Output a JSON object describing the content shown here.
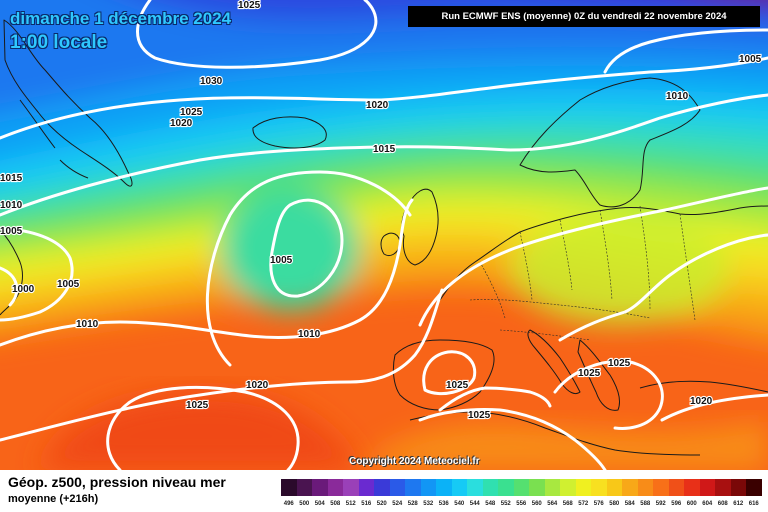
{
  "header": {
    "date": "dimanche 1 décembre 2024",
    "time": "1:00 locale",
    "run_info": "Run ECMWF ENS (moyenne) 0Z du vendredi 22 novembre 2024"
  },
  "copyright": "Copyright 2024 Meteociel.fr",
  "footer": {
    "variable_title": "Géop. z500, pression niveau mer",
    "variable_subtitle": "moyenne   (+216h)"
  },
  "pressure_labels": [
    "1025",
    "1030",
    "1020",
    "1025",
    "1020",
    "1015",
    "1010",
    "1005",
    "1015",
    "1010",
    "1005",
    "1000",
    "1005",
    "1010",
    "1010",
    "1005",
    "1020",
    "1025",
    "1025",
    "1025",
    "1025",
    "1025",
    "1020"
  ],
  "legend": {
    "labels": [
      "496",
      "500",
      "504",
      "508",
      "512",
      "516",
      "520",
      "524",
      "528",
      "532",
      "536",
      "540",
      "544",
      "548",
      "552",
      "556",
      "560",
      "564",
      "568",
      "572",
      "576",
      "580",
      "584",
      "588",
      "592",
      "596",
      "600",
      "604",
      "608",
      "612",
      "616"
    ],
    "colors": [
      "#2b0a2b",
      "#4a1450",
      "#6a1a7a",
      "#8a2a9a",
      "#9a40b8",
      "#6a2ad0",
      "#3a3ad8",
      "#2a5ae8",
      "#1e78f0",
      "#1296f5",
      "#0bb2f7",
      "#16caf5",
      "#2adede",
      "#30e0b0",
      "#3ae090",
      "#55e070",
      "#7ae050",
      "#a8e840",
      "#d0f030",
      "#f0f020",
      "#f8e020",
      "#f8c818",
      "#f8a818",
      "#f88c18",
      "#f87018",
      "#f05018",
      "#e83018",
      "#d01818",
      "#a81010",
      "#7a0808",
      "#3a0000"
    ]
  }
}
